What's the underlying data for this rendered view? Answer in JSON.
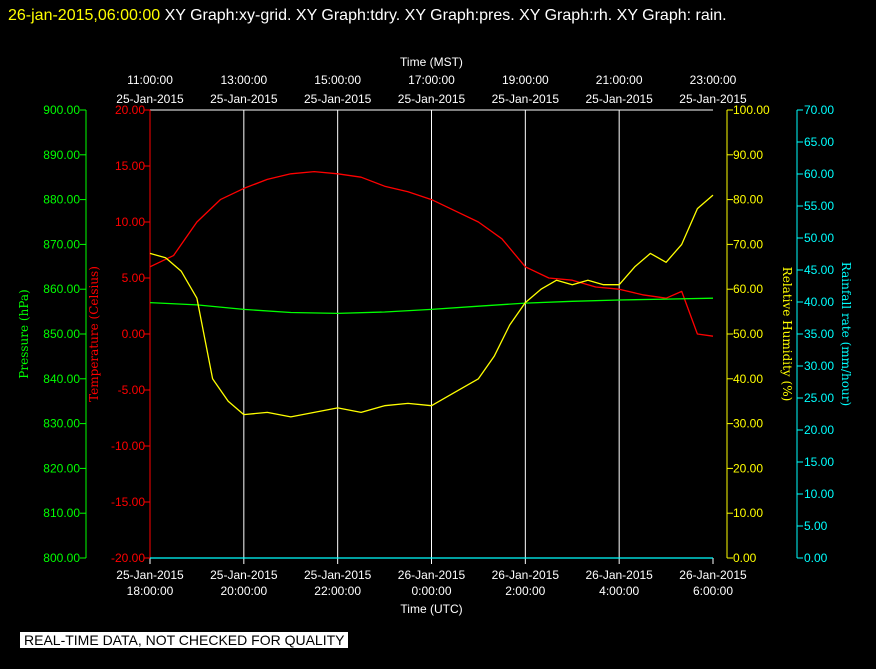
{
  "header": {
    "timestamp": "26-jan-2015,06:00:00",
    "title": "XY Graph:xy-grid.  XY Graph:tdry.  XY Graph:pres.  XY Graph:rh.  XY Graph: rain."
  },
  "notice": "REAL-TIME DATA, NOT CHECKED FOR QUALITY",
  "colors": {
    "background": "#000000",
    "pressure": "#00ff00",
    "temperature": "#ff0000",
    "humidity": "#ffff00",
    "rain": "#00ffff",
    "grid": "#ffffff"
  },
  "chart_data": {
    "type": "line",
    "grid": true,
    "x_top": {
      "label": "Time (MST)",
      "ticks": [
        {
          "time": "11:00:00",
          "date": "25-Jan-2015"
        },
        {
          "time": "13:00:00",
          "date": "25-Jan-2015"
        },
        {
          "time": "15:00:00",
          "date": "25-Jan-2015"
        },
        {
          "time": "17:00:00",
          "date": "25-Jan-2015"
        },
        {
          "time": "19:00:00",
          "date": "25-Jan-2015"
        },
        {
          "time": "21:00:00",
          "date": "25-Jan-2015"
        },
        {
          "time": "23:00:00",
          "date": "25-Jan-2015"
        }
      ]
    },
    "x_bottom": {
      "label": "Time (UTC)",
      "range": [
        "2015-01-25 18:00",
        "2015-01-26 06:00"
      ],
      "ticks": [
        {
          "date": "25-Jan-2015",
          "time": "18:00:00"
        },
        {
          "date": "25-Jan-2015",
          "time": "20:00:00"
        },
        {
          "date": "25-Jan-2015",
          "time": "22:00:00"
        },
        {
          "date": "26-Jan-2015",
          "time": "0:00:00"
        },
        {
          "date": "26-Jan-2015",
          "time": "2:00:00"
        },
        {
          "date": "26-Jan-2015",
          "time": "4:00:00"
        },
        {
          "date": "26-Jan-2015",
          "time": "6:00:00"
        }
      ]
    },
    "axes": {
      "pressure": {
        "label": "Pressure (hPa)",
        "ylim": [
          800,
          900
        ],
        "ticks": [
          "800.00",
          "810.00",
          "820.00",
          "830.00",
          "840.00",
          "850.00",
          "860.00",
          "870.00",
          "880.00",
          "890.00",
          "900.00"
        ]
      },
      "temperature": {
        "label": "Temperature (Celsius)",
        "ylim": [
          -20,
          20
        ],
        "ticks": [
          "-20.00",
          "-15.00",
          "-10.00",
          "-5.00",
          "0.00",
          "5.00",
          "10.00",
          "15.00",
          "20.00"
        ]
      },
      "humidity": {
        "label": "Relative Humidity (%)",
        "ylim": [
          0,
          100
        ],
        "ticks": [
          "0.00",
          "10.00",
          "20.00",
          "30.00",
          "40.00",
          "50.00",
          "60.00",
          "70.00",
          "80.00",
          "90.00",
          "100.00"
        ]
      },
      "rain": {
        "label": "Rainfall rate (mm/hour)",
        "ylim": [
          0,
          70
        ],
        "ticks": [
          "0.00",
          "5.00",
          "10.00",
          "15.00",
          "20.00",
          "25.00",
          "30.00",
          "35.00",
          "40.00",
          "45.00",
          "50.00",
          "55.00",
          "60.00",
          "65.00",
          "70.00"
        ]
      }
    },
    "series": [
      {
        "name": "tdry",
        "axis": "temperature",
        "color": "#ff0000",
        "x": [
          "2015-01-25 18:00",
          "2015-01-25 18:30",
          "2015-01-25 19:00",
          "2015-01-25 19:30",
          "2015-01-25 20:00",
          "2015-01-25 20:30",
          "2015-01-25 21:00",
          "2015-01-25 21:30",
          "2015-01-25 22:00",
          "2015-01-25 22:30",
          "2015-01-25 23:00",
          "2015-01-25 23:30",
          "2015-01-26 00:00",
          "2015-01-26 00:30",
          "2015-01-26 01:00",
          "2015-01-26 01:30",
          "2015-01-26 02:00",
          "2015-01-26 02:30",
          "2015-01-26 03:00",
          "2015-01-26 03:30",
          "2015-01-26 04:00",
          "2015-01-26 04:30",
          "2015-01-26 05:00",
          "2015-01-26 05:20",
          "2015-01-26 05:40",
          "2015-01-26 06:00"
        ],
        "y": [
          6.0,
          7.0,
          10.0,
          12.0,
          13.0,
          13.8,
          14.3,
          14.5,
          14.3,
          14.0,
          13.2,
          12.7,
          12.0,
          11.0,
          10.0,
          8.5,
          6.0,
          5.0,
          4.8,
          4.2,
          4.0,
          3.5,
          3.2,
          3.8,
          0.0,
          -0.2
        ]
      },
      {
        "name": "pres",
        "axis": "pressure",
        "color": "#00ff00",
        "x": [
          "2015-01-25 18:00",
          "2015-01-25 19:00",
          "2015-01-25 20:00",
          "2015-01-25 21:00",
          "2015-01-25 22:00",
          "2015-01-25 23:00",
          "2015-01-26 00:00",
          "2015-01-26 01:00",
          "2015-01-26 02:00",
          "2015-01-26 03:00",
          "2015-01-26 04:00",
          "2015-01-26 05:00",
          "2015-01-26 06:00"
        ],
        "y": [
          857.0,
          856.5,
          855.5,
          854.8,
          854.6,
          854.9,
          855.5,
          856.2,
          856.9,
          857.3,
          857.6,
          857.8,
          858.0
        ]
      },
      {
        "name": "rh",
        "axis": "humidity",
        "color": "#ffff00",
        "x": [
          "2015-01-25 18:00",
          "2015-01-25 18:20",
          "2015-01-25 18:40",
          "2015-01-25 19:00",
          "2015-01-25 19:20",
          "2015-01-25 19:40",
          "2015-01-25 20:00",
          "2015-01-25 20:30",
          "2015-01-25 21:00",
          "2015-01-25 21:30",
          "2015-01-25 22:00",
          "2015-01-25 22:30",
          "2015-01-25 23:00",
          "2015-01-25 23:30",
          "2015-01-26 00:00",
          "2015-01-26 00:30",
          "2015-01-26 01:00",
          "2015-01-26 01:20",
          "2015-01-26 01:40",
          "2015-01-26 02:00",
          "2015-01-26 02:20",
          "2015-01-26 02:40",
          "2015-01-26 03:00",
          "2015-01-26 03:20",
          "2015-01-26 03:40",
          "2015-01-26 04:00",
          "2015-01-26 04:20",
          "2015-01-26 04:40",
          "2015-01-26 05:00",
          "2015-01-26 05:20",
          "2015-01-26 05:40",
          "2015-01-26 06:00"
        ],
        "y": [
          68.0,
          67.0,
          64.0,
          58.0,
          40.0,
          35.0,
          32.0,
          32.5,
          31.5,
          32.5,
          33.5,
          32.5,
          34.0,
          34.5,
          34.0,
          37.0,
          40.0,
          45.0,
          52.0,
          57.0,
          60.0,
          62.0,
          61.0,
          62.0,
          61.0,
          61.0,
          65.0,
          68.0,
          66.0,
          70.0,
          78.0,
          81.0
        ]
      },
      {
        "name": "rain",
        "axis": "rain",
        "color": "#00ffff",
        "x": [
          "2015-01-25 18:00",
          "2015-01-26 06:00"
        ],
        "y": [
          0.0,
          0.0
        ]
      }
    ]
  }
}
